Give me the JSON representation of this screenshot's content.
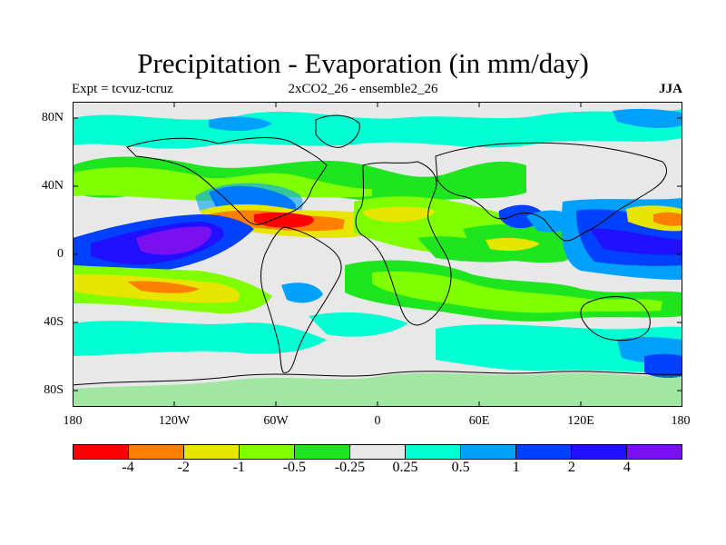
{
  "title": "Precipitation - Evaporation (in mm/day)",
  "subtitle_left": "Expt = tcvuz-tcruz",
  "subtitle_center": "2xCO2_26 - ensemble2_26",
  "subtitle_right": "JJA",
  "lat_labels": [
    "80N",
    "40N",
    "0",
    "40S",
    "80S"
  ],
  "lon_labels": [
    "180",
    "120W",
    "60W",
    "0",
    "60E",
    "120E",
    "180"
  ],
  "colorbar": {
    "colors": [
      "#ff0000",
      "#ff8000",
      "#e6e600",
      "#80ff00",
      "#1ee61e",
      "#e8e8e8",
      "#00ffd2",
      "#00a0ff",
      "#0040ff",
      "#2010ff",
      "#7a10f0"
    ],
    "labels": [
      "-4",
      "-2",
      "-1",
      "-0.5",
      "-0.25",
      "0.25",
      "0.5",
      "1",
      "2",
      "4"
    ]
  },
  "colors": {
    "background_field": "#e8e8e8",
    "coastline": "#000000"
  }
}
